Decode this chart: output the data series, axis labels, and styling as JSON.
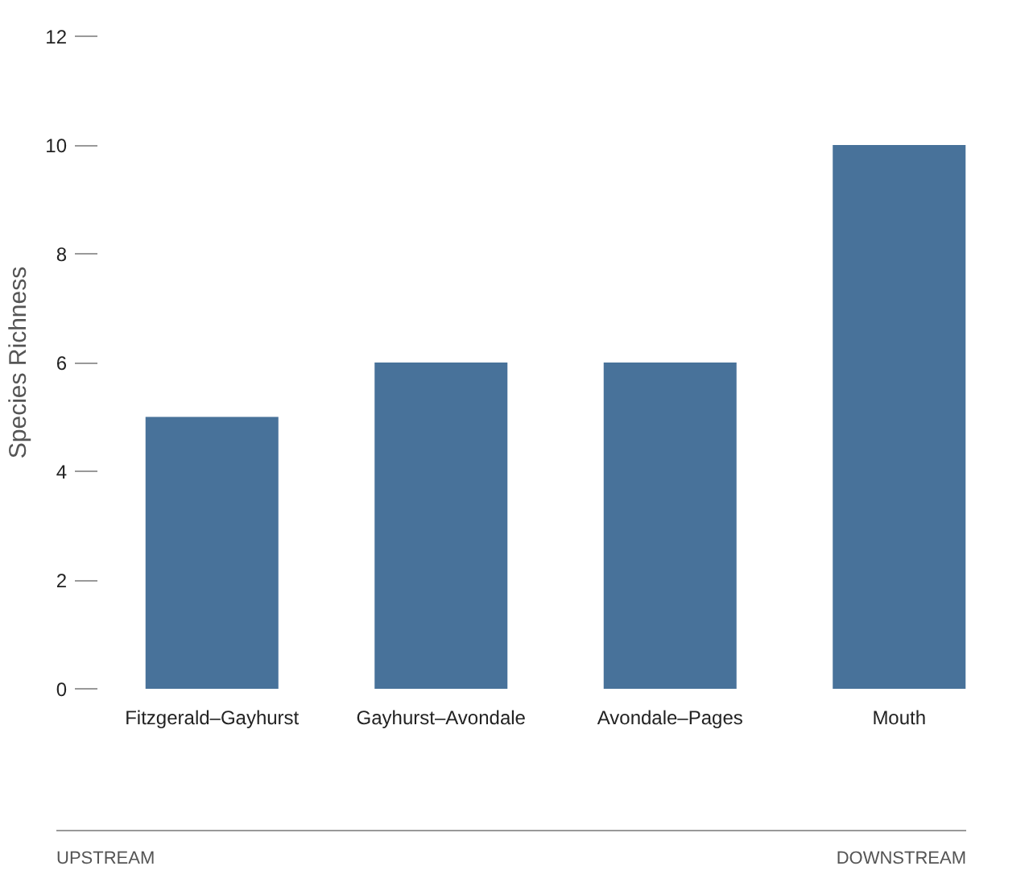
{
  "chart_data": {
    "type": "bar",
    "ylabel": "Species Richness",
    "categories": [
      "Fitzgerald–Gayhurst",
      "Gayhurst–Avondale",
      "Avondale–Pages",
      "Mouth"
    ],
    "values": [
      5,
      6,
      6,
      10
    ],
    "color": "#48729a",
    "ylim": [
      0,
      12
    ],
    "yticks": [
      0,
      2,
      4,
      6,
      8,
      10,
      12
    ],
    "grid": false,
    "annotations": [
      "UPSTREAM",
      "DOWNSTREAM"
    ]
  }
}
